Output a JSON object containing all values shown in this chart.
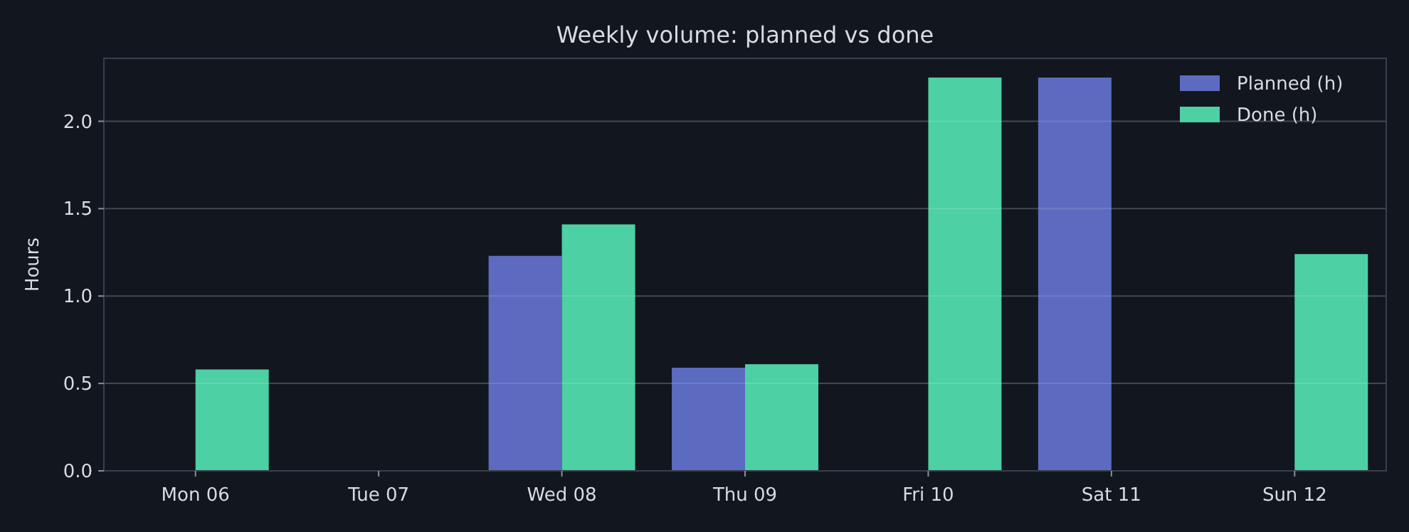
{
  "chart_data": {
    "type": "bar",
    "title": "Weekly volume: planned vs done",
    "ylabel": "Hours",
    "categories": [
      "Mon 06",
      "Tue 07",
      "Wed 08",
      "Thu 09",
      "Fri 10",
      "Sat 11",
      "Sun 12"
    ],
    "series": [
      {
        "name": "Planned (h)",
        "color": "#5c6bc0",
        "values": [
          0,
          0,
          1.23,
          0.59,
          0,
          2.25,
          0
        ]
      },
      {
        "name": "Done (h)",
        "color": "#4dd0a4",
        "values": [
          0.58,
          0,
          1.41,
          0.61,
          2.25,
          0,
          1.24
        ]
      }
    ],
    "ylim": [
      0,
      2.36
    ],
    "yticks": [
      {
        "value": 0,
        "label": "0.0"
      },
      {
        "value": 0.5,
        "label": "0.5"
      },
      {
        "value": 1,
        "label": "1.0"
      },
      {
        "value": 1.5,
        "label": "1.5"
      },
      {
        "value": 2,
        "label": "2.0"
      }
    ],
    "grid": "y",
    "legend": "top right"
  }
}
